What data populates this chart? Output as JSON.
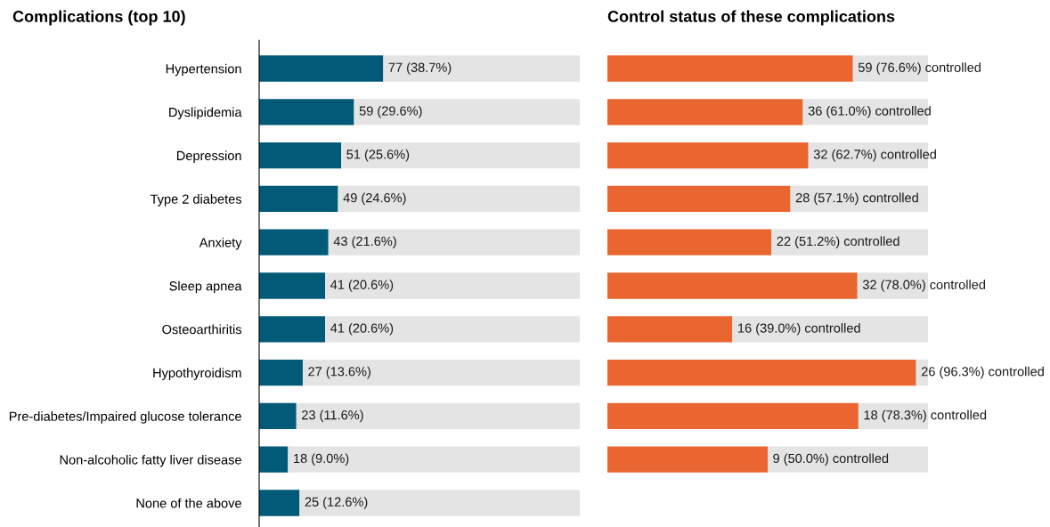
{
  "chart_data": [
    {
      "type": "bar",
      "orientation": "horizontal",
      "stacked": true,
      "title": "Complications (top 10)",
      "categories": [
        "Hypertension",
        "Dyslipidemia",
        "Depression",
        "Type 2 diabetes",
        "Anxiety",
        "Sleep apnea",
        "Osteoarthiritis",
        "Hypothyroidism",
        "Pre-diabetes/Impaired glucose tolerance",
        "Non-alcoholic fatty liver disease",
        "None of the above"
      ],
      "xlim": [
        0,
        100
      ],
      "tick_labels": "y",
      "grid": false,
      "series": [
        {
          "color": "#005a78",
          "values": [
            38.7,
            29.6,
            25.6,
            24.6,
            21.6,
            20.6,
            20.6,
            13.6,
            11.6,
            9.0,
            12.6
          ],
          "value_labels": [
            "77 (38.7%)",
            "59 (29.6%)",
            "51 (25.6%)",
            "49 (24.6%)",
            "43 (21.6%)",
            "41 (20.6%)",
            "41 (20.6%)",
            "27 (13.6%)",
            "23 (11.6%)",
            "18 (9.0%)",
            "25 (12.6%)"
          ]
        },
        {
          "color": "#e4e4e4",
          "values": [
            61.3,
            70.4,
            74.4,
            75.4,
            78.4,
            79.4,
            79.4,
            86.4,
            88.4,
            91.0,
            87.4
          ]
        }
      ]
    },
    {
      "type": "bar",
      "orientation": "horizontal",
      "stacked": true,
      "title": "Control status of these complications",
      "categories": [
        null,
        null,
        null,
        null,
        null,
        null,
        null,
        null,
        null,
        null
      ],
      "xlim": [
        0,
        100
      ],
      "tick_labels": false,
      "grid": false,
      "series": [
        {
          "color": "#e96630",
          "values": [
            76.6,
            61.0,
            62.7,
            57.1,
            51.2,
            78.0,
            39.0,
            96.3,
            78.3,
            50.0
          ],
          "value_labels": [
            "59 (76.6%) controlled",
            "36 (61.0%) controlled",
            "32 (62.7%) controlled",
            "28 (57.1%) controlled",
            "22 (51.2%) controlled",
            "32 (78.0%) controlled",
            "16 (39.0%) controlled",
            "26 (96.3%) controlled",
            "18 (78.3%) controlled",
            "9 (50.0%) controlled"
          ]
        },
        {
          "color": "#e4e4e4",
          "values": [
            23.4,
            39.0,
            37.3,
            42.9,
            48.8,
            22.0,
            61.0,
            3.7,
            21.7,
            50.0
          ]
        }
      ]
    }
  ]
}
